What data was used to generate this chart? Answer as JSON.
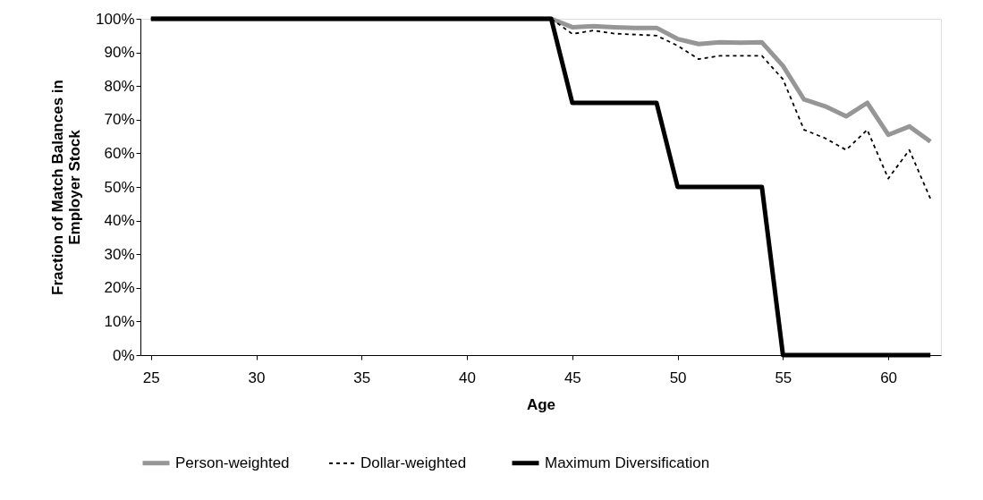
{
  "chart_data": {
    "type": "line",
    "x": [
      25,
      26,
      27,
      28,
      29,
      30,
      31,
      32,
      33,
      34,
      35,
      36,
      37,
      38,
      39,
      40,
      41,
      42,
      43,
      44,
      45,
      46,
      47,
      48,
      49,
      50,
      51,
      52,
      53,
      54,
      55,
      56,
      57,
      58,
      59,
      60,
      61,
      62
    ],
    "xlabel": "Age",
    "ylabel": "Fraction of Match Balances in Employer Stock",
    "xlim": [
      24.5,
      62.5
    ],
    "xticks": [
      25,
      30,
      35,
      40,
      45,
      50,
      55,
      60
    ],
    "ylim": [
      0,
      100
    ],
    "yticks": [
      {
        "value": 0,
        "label": "0%"
      },
      {
        "value": 10,
        "label": "10%"
      },
      {
        "value": 20,
        "label": "20%"
      },
      {
        "value": 30,
        "label": "30%"
      },
      {
        "value": 40,
        "label": "40%"
      },
      {
        "value": 50,
        "label": "50%"
      },
      {
        "value": 60,
        "label": "60%"
      },
      {
        "value": 70,
        "label": "70%"
      },
      {
        "value": 80,
        "label": "80%"
      },
      {
        "value": 90,
        "label": "90%"
      },
      {
        "value": 100,
        "label": "100%"
      }
    ],
    "grid": false,
    "legend": "bottom",
    "marker": "none",
    "series": [
      {
        "name": "Person-weighted",
        "color": "#969696",
        "line_style": "solid",
        "values": [
          100,
          100,
          100,
          100,
          100,
          100,
          100,
          100,
          100,
          100,
          100,
          100,
          100,
          100,
          100,
          100,
          100,
          100,
          100,
          100,
          97.5,
          97.8,
          97.5,
          97.3,
          97.3,
          94,
          92.5,
          93,
          92.9,
          93,
          86,
          76,
          74,
          71,
          75,
          65.5,
          68,
          63.5
        ]
      },
      {
        "name": "Dollar-weighted",
        "color": "#000000",
        "line_style": "dashed",
        "values": [
          100,
          100,
          100,
          100,
          100,
          100,
          100,
          100,
          100,
          100,
          100,
          100,
          100,
          100,
          100,
          100,
          100,
          100,
          100,
          100,
          95.5,
          96.5,
          95.6,
          95.3,
          95,
          92,
          88,
          89,
          89,
          89,
          82,
          67,
          64.5,
          61,
          67,
          52.5,
          61,
          46.5
        ]
      },
      {
        "name": "Maximum Diversification",
        "color": "#000000",
        "line_style": "solid",
        "values": [
          100,
          100,
          100,
          100,
          100,
          100,
          100,
          100,
          100,
          100,
          100,
          100,
          100,
          100,
          100,
          100,
          100,
          100,
          100,
          100,
          75,
          75,
          75,
          75,
          75,
          50,
          50,
          50,
          50,
          50,
          0,
          0,
          0,
          0,
          0,
          0,
          0,
          0
        ]
      }
    ]
  }
}
